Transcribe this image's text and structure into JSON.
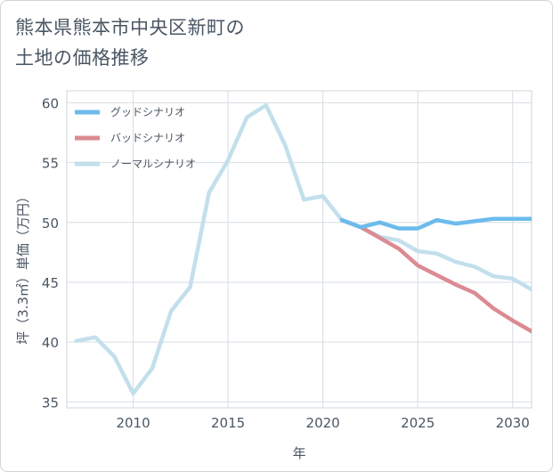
{
  "title_lines": [
    "熊本県熊本市中央区新町の",
    "土地の価格推移"
  ],
  "chart_data": {
    "type": "line",
    "xlabel": "年",
    "ylabel": "坪（3.3㎡）単価（万円）",
    "xlim": [
      2006.5,
      2031
    ],
    "ylim": [
      34.5,
      61
    ],
    "xticks": [
      2010,
      2015,
      2020,
      2025,
      2030
    ],
    "yticks": [
      35,
      40,
      45,
      50,
      55,
      60
    ],
    "grid": true,
    "legend_position": "top-left",
    "series": [
      {
        "name": "グッドシナリオ",
        "color": "#6cbbec",
        "x": [
          2021,
          2022,
          2023,
          2024,
          2025,
          2026,
          2027,
          2028,
          2029,
          2030,
          2031
        ],
        "y": [
          50.2,
          49.6,
          50.0,
          49.5,
          49.5,
          50.2,
          49.9,
          50.1,
          50.3,
          50.3,
          50.3
        ]
      },
      {
        "name": "バッドシナリオ",
        "color": "#db8b92",
        "x": [
          2021,
          2022,
          2023,
          2024,
          2025,
          2026,
          2027,
          2028,
          2029,
          2030,
          2031
        ],
        "y": [
          50.2,
          49.6,
          48.7,
          47.8,
          46.4,
          45.6,
          44.8,
          44.1,
          42.8,
          41.8,
          40.9
        ]
      },
      {
        "name": "ノーマルシナリオ",
        "color": "#c3dfec",
        "x": [
          2007,
          2008,
          2009,
          2010,
          2011,
          2012,
          2013,
          2014,
          2015,
          2016,
          2017,
          2018,
          2019,
          2020,
          2021,
          2022,
          2023,
          2024,
          2025,
          2026,
          2027,
          2028,
          2029,
          2030,
          2031
        ],
        "y": [
          40.1,
          40.4,
          38.8,
          35.7,
          37.8,
          42.6,
          44.6,
          52.5,
          55.2,
          58.8,
          59.8,
          56.5,
          51.9,
          52.2,
          50.2,
          49.6,
          48.8,
          48.5,
          47.6,
          47.4,
          46.7,
          46.3,
          45.5,
          45.3,
          44.4
        ]
      }
    ]
  }
}
